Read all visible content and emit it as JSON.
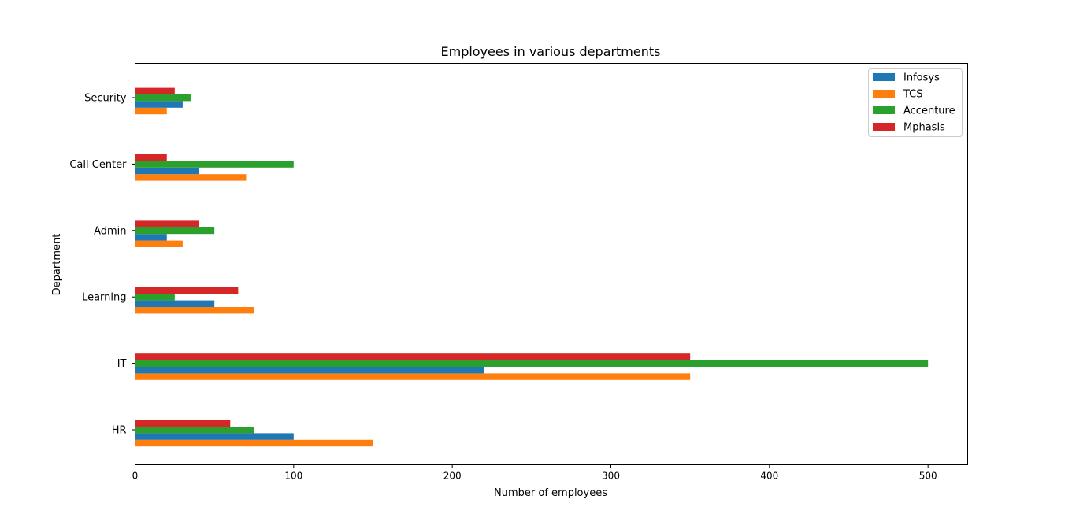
{
  "chart_data": {
    "type": "bar",
    "orientation": "horizontal",
    "title": "Employees in various departments",
    "xlabel": "Number of employees",
    "ylabel": "Department",
    "categories": [
      "HR",
      "IT",
      "Learning",
      "Admin",
      "Call Center",
      "Security"
    ],
    "series": [
      {
        "name": "Infosys",
        "color": "#1f77b4",
        "values": [
          100,
          220,
          50,
          20,
          40,
          30
        ]
      },
      {
        "name": "TCS",
        "color": "#ff7f0e",
        "values": [
          150,
          350,
          75,
          30,
          70,
          20
        ]
      },
      {
        "name": "Accenture",
        "color": "#2ca02c",
        "values": [
          75,
          500,
          25,
          50,
          100,
          35
        ]
      },
      {
        "name": "Mphasis",
        "color": "#d62728",
        "values": [
          60,
          350,
          65,
          40,
          20,
          25
        ]
      }
    ],
    "xlim": [
      0,
      525
    ],
    "xticks": [
      0,
      100,
      200,
      300,
      400,
      500
    ],
    "grid": false,
    "legend_position": "upper right"
  }
}
